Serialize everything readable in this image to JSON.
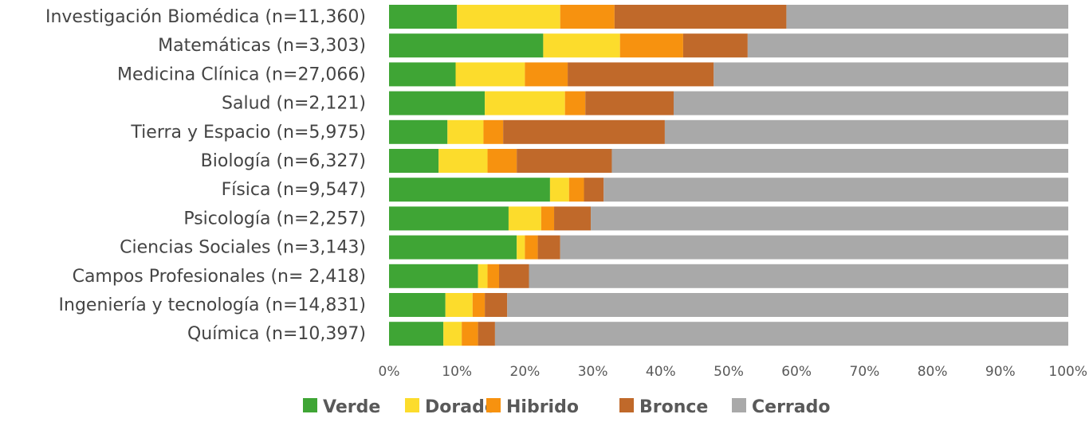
{
  "chart_data": {
    "type": "bar",
    "orientation": "horizontal",
    "stacked": true,
    "categories": [
      "Investigación Biomédica (n=11,360)",
      "Matemáticas (n=3,303)",
      "Medicina Clínica (n=27,066)",
      "Salud (n=2,121)",
      "Tierra y Espacio (n=5,975)",
      "Biología (n=6,327)",
      "Física (n=9,547)",
      "Psicología (n=2,257)",
      "Ciencias Sociales (n=3,143)",
      "Campos Profesionales (n= 2,418)",
      "Ingeniería y tecnología (n=14,831)",
      "Química (n=10,397)"
    ],
    "series": [
      {
        "name": "Verde",
        "color": "#3fa535",
        "values": [
          10,
          22.7,
          9.8,
          14.1,
          8.6,
          7.3,
          23.7,
          17.6,
          18.8,
          13.1,
          8.3,
          8.0
        ]
      },
      {
        "name": "Dorado",
        "color": "#fcdc2c",
        "values": [
          15.2,
          11.3,
          10.2,
          11.8,
          5.3,
          7.2,
          2.8,
          4.8,
          1.2,
          1.4,
          4.0,
          2.7
        ]
      },
      {
        "name": "Hibrido",
        "color": "#f7920f",
        "values": [
          8.0,
          9.3,
          6.3,
          3.0,
          2.9,
          4.3,
          2.2,
          1.9,
          1.9,
          1.7,
          1.8,
          2.4
        ]
      },
      {
        "name": "Bronce",
        "color": "#c0692a",
        "values": [
          25.3,
          9.5,
          21.5,
          13.0,
          23.8,
          14.0,
          2.9,
          5.4,
          3.3,
          4.4,
          3.3,
          2.5
        ]
      },
      {
        "name": "Cerrado",
        "color": "#a9a9a9",
        "values": [
          41.5,
          47.2,
          52.2,
          58.1,
          59.4,
          67.2,
          68.4,
          70.3,
          74.8,
          79.4,
          82.6,
          84.4
        ]
      }
    ],
    "xlim": [
      0,
      100
    ],
    "x_ticks": [
      "0%",
      "10%",
      "20%",
      "30%",
      "40%",
      "50%",
      "60%",
      "70%",
      "80%",
      "90%",
      "100%"
    ],
    "title": "",
    "xlabel": "",
    "ylabel": "",
    "grid": false,
    "legend_position": "bottom"
  }
}
